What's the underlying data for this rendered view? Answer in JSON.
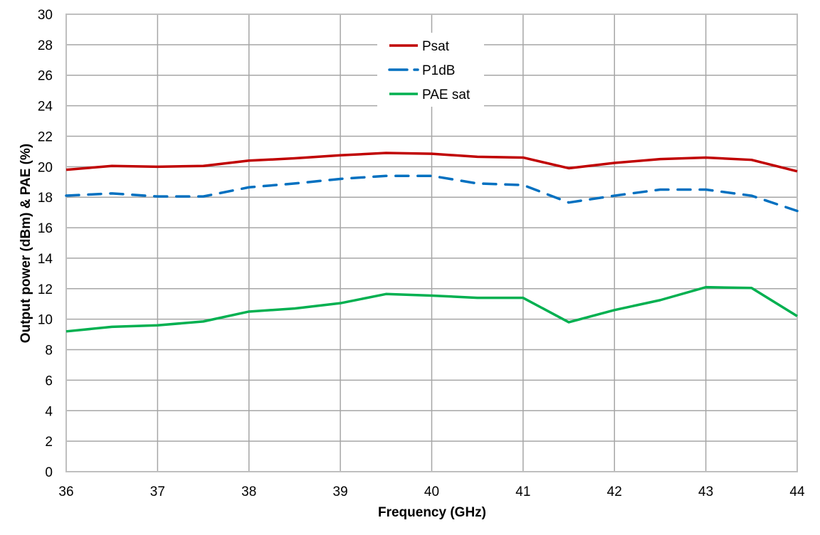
{
  "chart_data": {
    "type": "line",
    "title": "",
    "xlabel": "Frequency (GHz)",
    "ylabel": "Output power (dBm) & PAE (%)",
    "xlim": [
      36,
      44
    ],
    "ylim": [
      0,
      30
    ],
    "x_ticks": [
      36,
      37,
      38,
      39,
      40,
      41,
      42,
      43,
      44
    ],
    "y_ticks": [
      0,
      2,
      4,
      6,
      8,
      10,
      12,
      14,
      16,
      18,
      20,
      22,
      24,
      26,
      28,
      30
    ],
    "grid": true,
    "legend_position": "top-center",
    "x": [
      36,
      36.5,
      37,
      37.5,
      38,
      38.5,
      39,
      39.5,
      40,
      40.5,
      41,
      41.5,
      42,
      42.5,
      43,
      43.5,
      44
    ],
    "series": [
      {
        "name": "Psat",
        "color": "#c00000",
        "style": "solid",
        "values": [
          19.8,
          20.05,
          20.0,
          20.05,
          20.4,
          20.55,
          20.75,
          20.9,
          20.85,
          20.65,
          20.6,
          19.9,
          20.25,
          20.5,
          20.6,
          20.45,
          19.7
        ]
      },
      {
        "name": "P1dB",
        "color": "#0070c0",
        "style": "dashed",
        "values": [
          18.1,
          18.25,
          18.05,
          18.05,
          18.65,
          18.9,
          19.2,
          19.4,
          19.4,
          18.9,
          18.8,
          17.65,
          18.1,
          18.5,
          18.5,
          18.1,
          17.1
        ]
      },
      {
        "name": "PAE sat",
        "color": "#00b050",
        "style": "solid",
        "values": [
          9.2,
          9.5,
          9.6,
          9.85,
          10.5,
          10.7,
          11.05,
          11.65,
          11.55,
          11.4,
          11.4,
          9.8,
          10.6,
          11.25,
          12.1,
          12.05,
          10.2
        ]
      }
    ]
  }
}
